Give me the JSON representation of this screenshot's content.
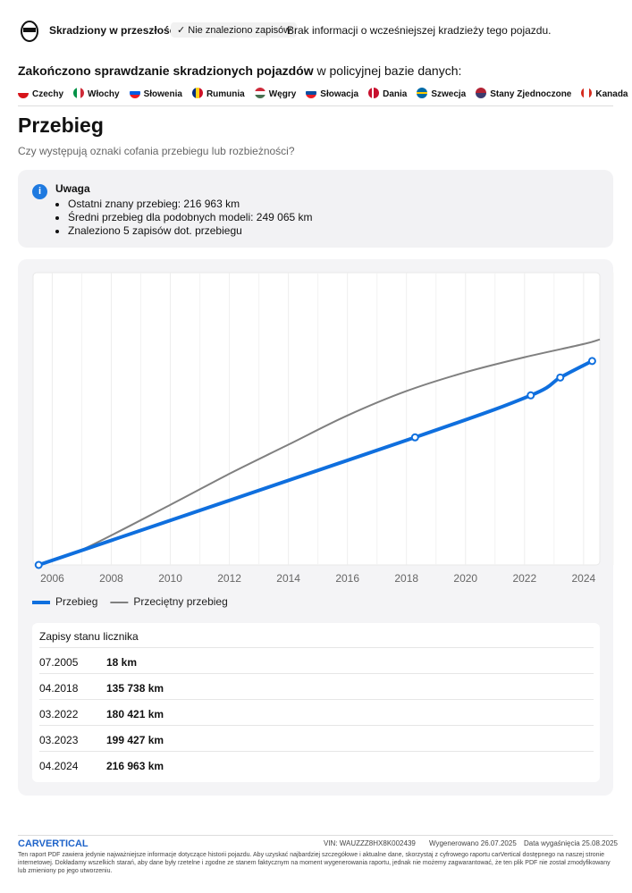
{
  "theft": {
    "title": "Skradziony w przeszłości",
    "badge": "Nie znaleziono zapisów",
    "text": "Brak informacji o wcześniejszej kradzieży tego pojazdu."
  },
  "check": {
    "heading": "Zakończono sprawdzanie skradzionych pojazdów",
    "rest": " w policyjnej bazie danych:",
    "countries": [
      "Czechy",
      "Włochy",
      "Słowenia",
      "Rumunia",
      "Węgry",
      "Słowacja",
      "Dania",
      "Szwecja",
      "Stany Zjednoczone",
      "Kanada"
    ]
  },
  "mileage": {
    "title": "Przebieg",
    "subtitle": "Czy występują oznaki cofania przebiegu lub rozbieżności?",
    "notice": {
      "title": "Uwaga",
      "items": [
        "Ostatni znany przebieg: 216 963 km",
        "Średni przebieg dla podobnych modeli: 249 065 km",
        "Znaleziono 5 zapisów dot. przebiegu"
      ]
    }
  },
  "chart_data": {
    "type": "line",
    "xlim": [
      2005.35,
      2024.55
    ],
    "ylim": [
      0,
      311000
    ],
    "xticks": [
      2006,
      2008,
      2010,
      2012,
      2014,
      2016,
      2018,
      2020,
      2022,
      2024
    ],
    "grid": true,
    "series": [
      {
        "name": "Przebieg",
        "color": "#0f6fde",
        "x": [
          2005.54,
          2018.29,
          2022.21,
          2023.21,
          2024.29
        ],
        "values": [
          18,
          135738,
          180421,
          199427,
          216963
        ]
      },
      {
        "name": "Przeciętny przebieg",
        "color": "#808080",
        "x": [
          2005.54,
          2007,
          2010,
          2012,
          2014,
          2016,
          2018,
          2020,
          2022,
          2024,
          2024.55
        ],
        "values": [
          0,
          16000,
          64000,
          97000,
          128000,
          159000,
          185000,
          205000,
          221000,
          235000,
          240000
        ]
      }
    ]
  },
  "records": {
    "title": "Zapisy stanu licznika",
    "rows": [
      [
        "07.2005",
        "18 km"
      ],
      [
        "04.2018",
        "135 738 km"
      ],
      [
        "03.2022",
        "180 421 km"
      ],
      [
        "03.2023",
        "199 427 km"
      ],
      [
        "04.2024",
        "216 963 km"
      ]
    ]
  },
  "footer": {
    "logo": "CARVERTICAL",
    "vin": "VIN:  WAUZZZ8HX8K002439",
    "generated": "Wygenerowano  26.07.2025",
    "expiry": "Data wygaśnięcia  25.08.2025",
    "disclaimer": "Ten raport PDF zawiera jedynie najważniejsze informacje dotyczące historii pojazdu. Aby uzyskać najbardziej szczegółowe i aktualne dane, skorzystaj z cyfrowego raportu carVertical dostępnego na naszej stronie internetowej. Dokładamy wszelkich starań, aby dane były rzetelne i zgodne ze stanem faktycznym na moment wygenerowania raportu, jednak nie możemy zagwarantować, że ten plik PDF nie został zmodyfikowany lub zmieniony po jego utworzeniu."
  }
}
